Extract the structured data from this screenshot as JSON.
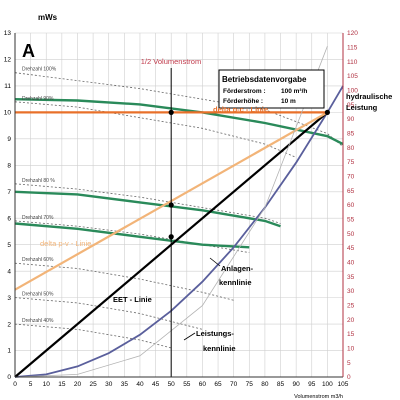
{
  "chart_data": {
    "type": "line",
    "panel_letter": "A",
    "y_left_unit": "mWs",
    "x_axis_label": "Volumenstrom m3/h",
    "xlim": [
      0,
      105
    ],
    "ylim_left": [
      0,
      13
    ],
    "ylim_right": [
      0,
      120
    ],
    "x_ticks": [
      0,
      5,
      10,
      15,
      20,
      25,
      30,
      35,
      40,
      45,
      50,
      55,
      60,
      65,
      70,
      75,
      80,
      85,
      90,
      95,
      100,
      105
    ],
    "y_left_ticks": [
      0,
      1,
      2,
      3,
      4,
      5,
      6,
      7,
      8,
      9,
      10,
      11,
      12,
      13
    ],
    "y_right_ticks": [
      0,
      5,
      10,
      15,
      20,
      25,
      30,
      35,
      40,
      45,
      50,
      55,
      60,
      65,
      70,
      75,
      80,
      85,
      90,
      95,
      100,
      105,
      110,
      115,
      120
    ],
    "right_axis_title": "hydraulische Leistung",
    "half_flow_label": "1/2 Volumenstrom",
    "half_flow_x": 50,
    "info_box": {
      "title": "Betriebsdatenvorgabe",
      "rows": [
        {
          "label": "Förderstrom :",
          "value": "100 m³/h"
        },
        {
          "label": "Förderhöhe :",
          "value": "10 m"
        }
      ]
    },
    "series": [
      {
        "name": "Anlagenkennlinie",
        "color": "#5a5f9c",
        "x": [
          0,
          10,
          20,
          30,
          40,
          50,
          60,
          70,
          80,
          90,
          100,
          105
        ],
        "y": [
          0,
          0.1,
          0.4,
          0.9,
          1.6,
          2.5,
          3.6,
          4.9,
          6.4,
          8.1,
          10,
          11
        ]
      },
      {
        "name": "EET - Linie",
        "color": "#000000",
        "x": [
          0,
          100
        ],
        "y": [
          0,
          10
        ]
      },
      {
        "name": "delta p-v - Linie",
        "color": "#f2b478",
        "x": [
          0,
          100
        ],
        "y": [
          3.3,
          10
        ]
      },
      {
        "name": "delta p-c - Linie",
        "color": "#e8702a",
        "x": [
          0,
          100
        ],
        "y": [
          10,
          10
        ]
      },
      {
        "name": "Leistungskennlinie",
        "color": "#b3b3b3",
        "x": [
          0,
          20,
          40,
          60,
          80,
          100
        ],
        "y": [
          0,
          0.1,
          0.8,
          2.7,
          6.4,
          12.5
        ]
      }
    ],
    "speed_curves": [
      {
        "label": "Drehzahl 100%",
        "x": [
          0,
          20,
          40,
          60,
          80,
          100,
          105
        ],
        "y": [
          11.5,
          11.2,
          10.9,
          10.5,
          10.1,
          9.2,
          8.7
        ]
      },
      {
        "label": "Drehzahl 90%",
        "x": [
          0,
          20,
          40,
          60,
          80,
          90
        ],
        "y": [
          10.4,
          10.2,
          9.8,
          9.4,
          8.8,
          8.3
        ]
      },
      {
        "label": "Drehzahl 80 %",
        "x": [
          0,
          20,
          40,
          60,
          80,
          85
        ],
        "y": [
          7.3,
          7.1,
          6.8,
          6.4,
          6,
          5.8
        ]
      },
      {
        "label": "Drehzahl 70%",
        "x": [
          0,
          20,
          40,
          60,
          75
        ],
        "y": [
          5.9,
          5.7,
          5.4,
          5,
          4.7
        ]
      },
      {
        "label": "Drehzahl 60%",
        "x": [
          0,
          20,
          40,
          60,
          70
        ],
        "y": [
          4.3,
          4.1,
          3.7,
          3.2,
          2.9
        ]
      },
      {
        "label": "Drehzahl 50%",
        "x": [
          0,
          20,
          40,
          60
        ],
        "y": [
          3,
          2.8,
          2.4,
          1.8
        ]
      },
      {
        "label": "Drehzahl 40%",
        "x": [
          0,
          20,
          40,
          50
        ],
        "y": [
          2,
          1.8,
          1.4,
          1.1
        ]
      }
    ],
    "green_curves": [
      {
        "x": [
          0,
          20,
          40,
          60,
          80,
          100,
          105
        ],
        "y": [
          10.5,
          10.45,
          10.3,
          10,
          9.6,
          9.1,
          8.8
        ]
      },
      {
        "x": [
          0,
          20,
          40,
          60,
          80,
          85
        ],
        "y": [
          7,
          6.9,
          6.6,
          6.3,
          5.9,
          5.7
        ]
      },
      {
        "x": [
          0,
          20,
          40,
          60,
          75
        ],
        "y": [
          5.8,
          5.6,
          5.3,
          5,
          4.9
        ]
      }
    ],
    "markers": [
      {
        "x": 50,
        "y": 10
      },
      {
        "x": 50,
        "y": 6.5
      },
      {
        "x": 50,
        "y": 5.3
      },
      {
        "x": 100,
        "y": 10
      }
    ],
    "annotations": [
      {
        "text": "delta p-c - Linie",
        "color": "#e8702a"
      },
      {
        "text": "delta p-v - Linie",
        "color": "#f2b478"
      },
      {
        "text": "EET - Linie",
        "color": "#000000"
      },
      {
        "text": "Anlagen-",
        "color": "#000000"
      },
      {
        "text": "kennlinie",
        "color": "#000000"
      },
      {
        "text": "Leistungs-",
        "color": "#000000"
      },
      {
        "text": "kennlinie",
        "color": "#000000"
      }
    ],
    "colors": {
      "grid": "#cfcfcf",
      "axis": "#333333",
      "right_axis": "#b03040",
      "green": "#2a8a5a",
      "speed_dash": "#666666",
      "half_flow": "#c0394a"
    }
  }
}
